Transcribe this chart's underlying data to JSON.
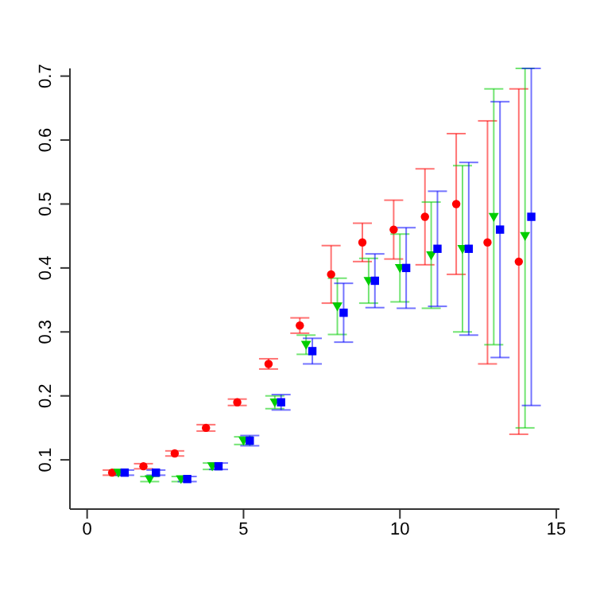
{
  "chart_data": {
    "type": "scatter",
    "xlim": [
      -0.55,
      15.1
    ],
    "ylim": [
      0.023,
      0.712
    ],
    "xticks": [
      0,
      5,
      10,
      15
    ],
    "yticks": [
      0.1,
      0.2,
      0.3,
      0.4,
      0.5,
      0.6,
      0.7
    ],
    "grid": false,
    "legend": false,
    "series": [
      {
        "color": "#ff0000",
        "marker": "circle",
        "x": [
          0.8,
          1.8,
          2.8,
          3.8,
          4.8,
          5.8,
          6.8,
          7.8,
          8.8,
          9.8,
          10.8,
          11.8,
          12.8,
          13.8
        ],
        "values": [
          0.08,
          0.09,
          0.11,
          0.15,
          0.19,
          0.25,
          0.31,
          0.39,
          0.44,
          0.46,
          0.48,
          0.5,
          0.44,
          0.41
        ],
        "errors": [
          0.004,
          0.004,
          0.004,
          0.005,
          0.005,
          0.008,
          0.012,
          0.045,
          0.03,
          0.046,
          0.075,
          0.11,
          0.19,
          0.27
        ]
      },
      {
        "color": "#00cd00",
        "marker": "triangle",
        "x": [
          1,
          2,
          3,
          4,
          5,
          6,
          7,
          8,
          9,
          10,
          11,
          12,
          13,
          14
        ],
        "values": [
          0.08,
          0.07,
          0.07,
          0.09,
          0.13,
          0.19,
          0.28,
          0.34,
          0.38,
          0.4,
          0.42,
          0.43,
          0.48,
          0.45
        ],
        "errors": [
          0.004,
          0.004,
          0.004,
          0.005,
          0.006,
          0.01,
          0.015,
          0.044,
          0.035,
          0.053,
          0.083,
          0.13,
          0.2,
          [
            0.15,
            0.712
          ]
        ]
      },
      {
        "color": "#0000ff",
        "marker": "square",
        "x": [
          1.2,
          2.2,
          3.2,
          4.2,
          5.2,
          6.2,
          7.2,
          8.2,
          9.2,
          10.2,
          11.2,
          12.2,
          13.2,
          14.2
        ],
        "values": [
          0.08,
          0.08,
          0.07,
          0.09,
          0.13,
          0.19,
          0.27,
          0.33,
          0.38,
          0.4,
          0.43,
          0.43,
          0.46,
          0.48
        ],
        "errors": [
          0.004,
          0.004,
          0.004,
          0.005,
          0.008,
          0.012,
          0.02,
          0.046,
          0.042,
          0.063,
          0.09,
          0.135,
          0.2,
          [
            0.185,
            0.712
          ]
        ]
      }
    ]
  }
}
